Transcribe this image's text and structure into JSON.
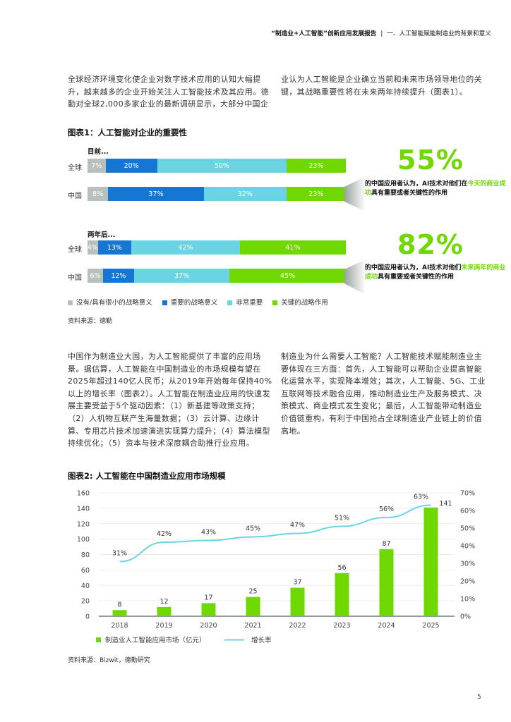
{
  "header": {
    "report_title": "“制造业+人工智能”创新应用发展报告",
    "separator": "|",
    "section": "一、人工智能赋能制造业的背景和意义"
  },
  "intro": {
    "left": "全球经济环境变化使企业对数字技术应用的认知大幅提升，越来越多的企业开始关注人工智能技术及其应用。德勤对全球2,000多家企业的最新调研显示，大部分中国企",
    "right": "业认为人工智能是企业确立当前和未来市场领导地位的关键，其战略重要性将在未来两年持续提升（图表1）。"
  },
  "figure1": {
    "title": "图表1：人工智能对企业的重要性",
    "group_now": "目前...",
    "group_future": "两年后...",
    "rows": [
      {
        "label": "全球",
        "values": [
          7,
          20,
          50,
          23
        ],
        "texts": [
          "7%",
          "20%",
          "50%",
          "23%"
        ]
      },
      {
        "label": "中国",
        "values": [
          8,
          37,
          32,
          23
        ],
        "texts": [
          "8%",
          "37%",
          "32%",
          "23%"
        ]
      },
      {
        "label": "全球",
        "values": [
          4,
          13,
          42,
          41
        ],
        "texts": [
          "4%",
          "13%",
          "42%",
          "41%"
        ]
      },
      {
        "label": "中国",
        "values": [
          6,
          12,
          37,
          45
        ],
        "texts": [
          "6%",
          "12%",
          "37%",
          "45%"
        ]
      }
    ],
    "legend": [
      {
        "label": "没有/具有很小的战略意义",
        "color": "#b7c0bc"
      },
      {
        "label": "重要的战略意义",
        "color": "#1577d3"
      },
      {
        "label": "非常重要",
        "color": "#6ad4e2"
      },
      {
        "label": "关键的战略作用",
        "color": "#6fd800"
      }
    ],
    "source": "资料来源：德勤",
    "callout_now": {
      "pct": "55%",
      "pre": "的中国应用者认为，AI技术对他们在",
      "highlight": "今天的商业成功",
      "post": "具有重要或者关键性的作用"
    },
    "callout_future": {
      "pct": "82%",
      "pre": "的中国应用者认为，AI技术对他们",
      "highlight": "未来两年的商业成功",
      "post": "具有重要或者关键性的作用"
    }
  },
  "body2": {
    "left": "中国作为制造业大国，为人工智能提供了丰富的应用场景。据估算，人工智能在中国制造业的市场规模有望在2025年超过140亿人民币；从2019年开始每年保持40%以上的增长率（图表2）。人工智能在制造业应用的快速发展主要受益于5个驱动因素：（1）新基建等政策支持；（2）人机物互联产生海量数据；（3）云计算、边缘计算、专用芯片技术加速演进实现算力提升；（4）算法模型持续优化；（5）资本与技术深度耦合助推行业应用。",
    "right": "制造业为什么需要人工智能？人工智能技术赋能制造业主要体现在三方面：首先，人工智能可以帮助企业提高智能化运营水平，实现降本增效；其次，人工智能、5G、工业互联网等技术融合应用，推动制造业生产及服务模式、决策模式、商业模式发生变化；最后，人工智能带动制造业价值链重构，有利于中国抢占全球制造业产业链上的价值高地。"
  },
  "figure2": {
    "title": "图表2: 人工智能在中国制造业应用市场规模",
    "source": "资料来源：Bizwit，德勤研究"
  },
  "chart_data": [
    {
      "type": "bar",
      "orientation": "horizontal-stacked-100",
      "title": "图表1：人工智能对企业的重要性",
      "categories": [
        "目前 全球",
        "目前 中国",
        "两年后 全球",
        "两年后 中国"
      ],
      "series": [
        {
          "name": "没有/具有很小的战略意义",
          "values": [
            7,
            8,
            4,
            6
          ]
        },
        {
          "name": "重要的战略意义",
          "values": [
            20,
            37,
            13,
            12
          ]
        },
        {
          "name": "非常重要",
          "values": [
            50,
            32,
            42,
            37
          ]
        },
        {
          "name": "关键的战略作用",
          "values": [
            23,
            23,
            41,
            45
          ]
        }
      ],
      "annotations": [
        "55% 的中国应用者认为，AI技术对他们在今天的商业成功具有重要或者关键性的作用",
        "82% 的中国应用者认为，AI技术对他们未来两年的商业成功具有重要或者关键性的作用"
      ],
      "legend_position": "bottom"
    },
    {
      "type": "bar",
      "combo": "bar+line",
      "title": "图表2: 人工智能在中国制造业应用市场规模",
      "categories": [
        "2018",
        "2019",
        "2020",
        "2021",
        "2022",
        "2023",
        "2024",
        "2025"
      ],
      "series": [
        {
          "name": "制造业人工智能应用市场（亿元）",
          "type": "bar",
          "axis": "left",
          "values": [
            8,
            12,
            17,
            25,
            37,
            56,
            87,
            141
          ],
          "color": "#6fd800"
        },
        {
          "name": "增长率",
          "type": "line",
          "axis": "right",
          "values": [
            31,
            42,
            43,
            45,
            47,
            51,
            56,
            63
          ],
          "labels": [
            "31%",
            "42%",
            "43%",
            "45%",
            "47%",
            "51%",
            "56%",
            "63%"
          ],
          "color": "#6ad4e2"
        }
      ],
      "ylim_left": [
        0,
        160
      ],
      "yticks_left": [
        "0",
        "20",
        "40",
        "60",
        "80",
        "100",
        "120",
        "140",
        "160"
      ],
      "ylim_right": [
        0,
        70
      ],
      "yticks_right": [
        "0%",
        "10%",
        "20%",
        "30%",
        "40%",
        "50%",
        "60%",
        "70%"
      ],
      "grid": true,
      "legend_position": "bottom"
    }
  ],
  "page_number": "5"
}
